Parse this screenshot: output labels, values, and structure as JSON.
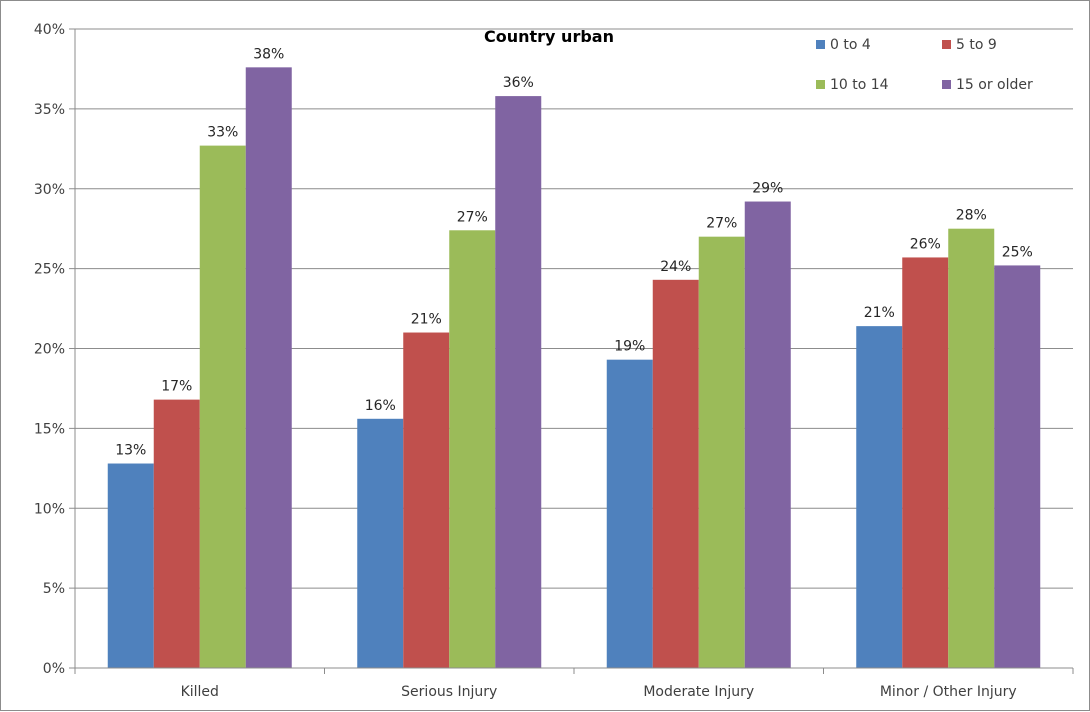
{
  "chart_data": {
    "type": "bar",
    "title": "Country urban",
    "xlabel": "",
    "ylabel": "",
    "categories": [
      "Killed",
      "Serious Injury",
      "Moderate Injury",
      "Minor / Other Injury"
    ],
    "series": [
      {
        "name": "0 to 4",
        "color": "#4f81bd",
        "values": [
          12.8,
          15.6,
          19.3,
          21.4
        ],
        "labels": [
          "13%",
          "16%",
          "19%",
          "21%"
        ]
      },
      {
        "name": "5 to 9",
        "color": "#c0504d",
        "values": [
          16.8,
          21.0,
          24.3,
          25.7
        ],
        "labels": [
          "17%",
          "21%",
          "24%",
          "26%"
        ]
      },
      {
        "name": "10 to 14",
        "color": "#9bbb59",
        "values": [
          32.7,
          27.4,
          27.0,
          27.5
        ],
        "labels": [
          "33%",
          "27%",
          "27%",
          "28%"
        ]
      },
      {
        "name": "15 or older",
        "color": "#8064a2",
        "values": [
          37.6,
          35.8,
          29.2,
          25.2
        ],
        "labels": [
          "38%",
          "36%",
          "29%",
          "25%"
        ]
      }
    ],
    "ylim": [
      0,
      40
    ],
    "yticks": [
      "0%",
      "5%",
      "10%",
      "15%",
      "20%",
      "25%",
      "30%",
      "35%",
      "40%"
    ],
    "grid": true,
    "legend": "top-right"
  }
}
